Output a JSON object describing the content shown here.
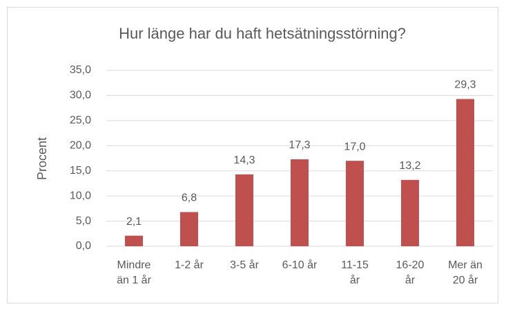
{
  "chart_data": {
    "type": "bar",
    "title": "Hur länge har du haft hetsätningsstörning?",
    "y_label": "Procent",
    "categories": [
      "Mindre än 1 år",
      "1-2 år",
      "3-5 år",
      "6-10 år",
      "11-15 år",
      "16-20 år",
      "Mer än 20 år"
    ],
    "values": [
      2.1,
      6.8,
      14.3,
      17.3,
      17.0,
      13.2,
      29.3
    ],
    "value_labels": [
      "2,1",
      "6,8",
      "14,3",
      "17,3",
      "17,0",
      "13,2",
      "29,3"
    ],
    "color": "#c0504d",
    "ylim": [
      0,
      35
    ],
    "yticks": [
      {
        "value": 0,
        "label": "0,0"
      },
      {
        "value": 5,
        "label": "5,0"
      },
      {
        "value": 10,
        "label": "10,0"
      },
      {
        "value": 15,
        "label": "15,0"
      },
      {
        "value": 20,
        "label": "20,0"
      },
      {
        "value": 25,
        "label": "25,0"
      },
      {
        "value": 30,
        "label": "30,0"
      },
      {
        "value": 35,
        "label": "35,0"
      }
    ],
    "grid": true
  }
}
